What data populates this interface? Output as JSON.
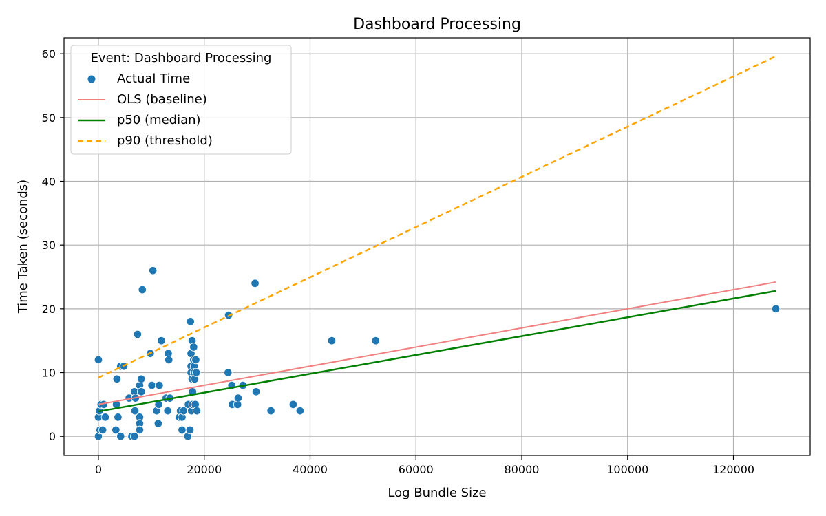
{
  "chart_data": {
    "type": "scatter",
    "title": "Dashboard Processing",
    "xlabel": "Log Bundle Size",
    "ylabel": "Time Taken (seconds)",
    "xlim": [
      -6500,
      134500
    ],
    "ylim": [
      -3,
      62.5
    ],
    "xticks": [
      0,
      20000,
      40000,
      60000,
      80000,
      100000,
      120000
    ],
    "yticks": [
      0,
      10,
      20,
      30,
      40,
      50,
      60
    ],
    "grid": true,
    "legend": {
      "title": "Event: Dashboard Processing",
      "placement": "top-left",
      "entries": [
        "Actual Time",
        "OLS (baseline)",
        "p50 (median)",
        "p90 (threshold)"
      ]
    },
    "series": [
      {
        "name": "Actual Time",
        "kind": "scatter",
        "color": "#1f77b4",
        "points": [
          [
            0,
            12
          ],
          [
            0,
            3
          ],
          [
            0,
            0
          ],
          [
            200,
            4
          ],
          [
            300,
            1
          ],
          [
            500,
            5
          ],
          [
            800,
            1
          ],
          [
            1000,
            5
          ],
          [
            1300,
            3
          ],
          [
            3300,
            1
          ],
          [
            3400,
            5
          ],
          [
            3500,
            9
          ],
          [
            3700,
            3
          ],
          [
            4200,
            0
          ],
          [
            4200,
            11
          ],
          [
            4800,
            11
          ],
          [
            5800,
            6
          ],
          [
            6300,
            0
          ],
          [
            6800,
            0
          ],
          [
            6800,
            7
          ],
          [
            6900,
            4
          ],
          [
            7000,
            6
          ],
          [
            7400,
            16
          ],
          [
            7800,
            8
          ],
          [
            7800,
            3
          ],
          [
            7800,
            2
          ],
          [
            7800,
            1
          ],
          [
            8100,
            7
          ],
          [
            8100,
            9
          ],
          [
            8300,
            23
          ],
          [
            9800,
            13
          ],
          [
            10100,
            8
          ],
          [
            10300,
            26
          ],
          [
            11000,
            4
          ],
          [
            11300,
            2
          ],
          [
            11400,
            5
          ],
          [
            11500,
            8
          ],
          [
            11900,
            15
          ],
          [
            12800,
            6
          ],
          [
            13100,
            4
          ],
          [
            13200,
            13
          ],
          [
            13300,
            12
          ],
          [
            13500,
            6
          ],
          [
            15300,
            3
          ],
          [
            15500,
            4
          ],
          [
            15800,
            3
          ],
          [
            15800,
            1
          ],
          [
            16100,
            4
          ],
          [
            16900,
            0
          ],
          [
            17000,
            5
          ],
          [
            17300,
            1
          ],
          [
            17400,
            18
          ],
          [
            17500,
            13
          ],
          [
            17500,
            11
          ],
          [
            17500,
            10
          ],
          [
            17600,
            4
          ],
          [
            17700,
            15
          ],
          [
            17700,
            9
          ],
          [
            17800,
            7
          ],
          [
            17800,
            5
          ],
          [
            18000,
            14
          ],
          [
            18000,
            12
          ],
          [
            18100,
            11
          ],
          [
            18100,
            10
          ],
          [
            18200,
            9
          ],
          [
            18300,
            5
          ],
          [
            18400,
            12
          ],
          [
            18500,
            10
          ],
          [
            18600,
            4
          ],
          [
            24500,
            10
          ],
          [
            24600,
            19
          ],
          [
            25200,
            8
          ],
          [
            25300,
            5
          ],
          [
            26300,
            5
          ],
          [
            26400,
            6
          ],
          [
            27300,
            8
          ],
          [
            29600,
            24
          ],
          [
            29800,
            7
          ],
          [
            32600,
            4
          ],
          [
            36800,
            5
          ],
          [
            38100,
            4
          ],
          [
            44100,
            15
          ],
          [
            52400,
            15
          ],
          [
            128000,
            20
          ]
        ]
      },
      {
        "name": "OLS (baseline)",
        "kind": "line",
        "color": "#f08080",
        "dash": "solid",
        "x": [
          0,
          128000
        ],
        "y": [
          5.0,
          24.2
        ]
      },
      {
        "name": "p50 (median)",
        "kind": "line",
        "color": "#008000",
        "dash": "solid",
        "x": [
          0,
          128000
        ],
        "y": [
          3.9,
          22.8
        ]
      },
      {
        "name": "p90 (threshold)",
        "kind": "line",
        "color": "#ffa500",
        "dash": "dashed",
        "x": [
          0,
          128000
        ],
        "y": [
          9.2,
          59.6
        ]
      }
    ]
  }
}
